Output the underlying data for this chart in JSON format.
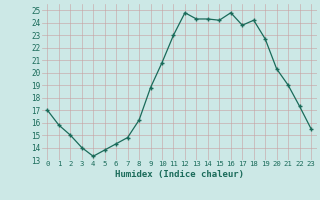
{
  "x": [
    0,
    1,
    2,
    3,
    4,
    5,
    6,
    7,
    8,
    9,
    10,
    11,
    12,
    13,
    14,
    15,
    16,
    17,
    18,
    19,
    20,
    21,
    22,
    23
  ],
  "y": [
    17.0,
    15.8,
    15.0,
    14.0,
    13.3,
    13.8,
    14.3,
    14.8,
    16.2,
    18.8,
    20.8,
    23.0,
    24.8,
    24.3,
    24.3,
    24.2,
    24.8,
    23.8,
    24.2,
    22.7,
    20.3,
    19.0,
    17.3,
    15.5
  ],
  "xlabel": "Humidex (Indice chaleur)",
  "ylim": [
    13,
    25.5
  ],
  "yticks": [
    13,
    14,
    15,
    16,
    17,
    18,
    19,
    20,
    21,
    22,
    23,
    24,
    25
  ],
  "xticks": [
    0,
    1,
    2,
    3,
    4,
    5,
    6,
    7,
    8,
    9,
    10,
    11,
    12,
    13,
    14,
    15,
    16,
    17,
    18,
    19,
    20,
    21,
    22,
    23
  ],
  "line_color": "#1a6b5a",
  "marker_color": "#1a6b5a",
  "bg_color": "#cce8e6",
  "grid_color": "#b0ccca",
  "tick_color": "#1a6b5a",
  "xlabel_color": "#1a6b5a"
}
